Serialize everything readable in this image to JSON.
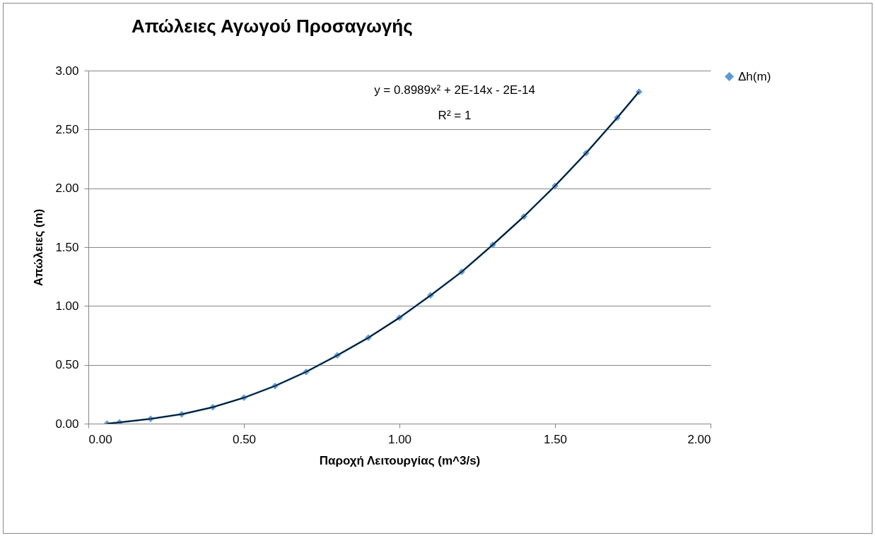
{
  "chart_data": {
    "type": "line",
    "title": "Απώλειες Αγωγού Προσαγωγής",
    "xlabel": "Παροχή  Λειτουργίας (m^3/s)",
    "ylabel": "Απώλειες (m)",
    "x": [
      0.06,
      0.1,
      0.2,
      0.3,
      0.4,
      0.5,
      0.6,
      0.7,
      0.8,
      0.9,
      1.0,
      1.1,
      1.2,
      1.3,
      1.4,
      1.5,
      1.6,
      1.7,
      1.77
    ],
    "series": [
      {
        "name": "Δh(m)",
        "color": "#5b9bd5",
        "marker": "diamond",
        "values": [
          0.0,
          0.01,
          0.04,
          0.08,
          0.14,
          0.22,
          0.32,
          0.44,
          0.58,
          0.73,
          0.9,
          1.09,
          1.29,
          1.52,
          1.76,
          2.02,
          2.3,
          2.6,
          2.82
        ]
      },
      {
        "type": "line",
        "color": "#000000",
        "marker": "none",
        "x": [
          0.06,
          0.1,
          0.2,
          0.3,
          0.4,
          0.5,
          0.6,
          0.7,
          0.8,
          0.9,
          1.0,
          1.1,
          1.2,
          1.3,
          1.4,
          1.5,
          1.6,
          1.7,
          1.77
        ],
        "values": [
          0.0,
          0.01,
          0.04,
          0.08,
          0.14,
          0.22,
          0.32,
          0.44,
          0.58,
          0.73,
          0.9,
          1.09,
          1.29,
          1.52,
          1.76,
          2.02,
          2.3,
          2.6,
          2.82
        ]
      }
    ],
    "annotations": [
      "y = 0.8989x² + 2E-14x - 2E-14",
      "R² = 1"
    ],
    "xlim": [
      0,
      2
    ],
    "xticks": [
      {
        "value": 0,
        "label": "0.00"
      },
      {
        "value": 0.5,
        "label": "0.50"
      },
      {
        "value": 1,
        "label": "1.00"
      },
      {
        "value": 1.5,
        "label": "1.50"
      },
      {
        "value": 2,
        "label": "2.00"
      }
    ],
    "ylim": [
      0,
      3
    ],
    "yticks": [
      {
        "value": 0,
        "label": "0.00"
      },
      {
        "value": 0.5,
        "label": "0.50"
      },
      {
        "value": 1,
        "label": "1.00"
      },
      {
        "value": 1.5,
        "label": "1.50"
      },
      {
        "value": 2,
        "label": "2.00"
      },
      {
        "value": 2.5,
        "label": "2.50"
      },
      {
        "value": 3,
        "label": "3.00"
      }
    ],
    "grid": "y",
    "legend": "right"
  }
}
